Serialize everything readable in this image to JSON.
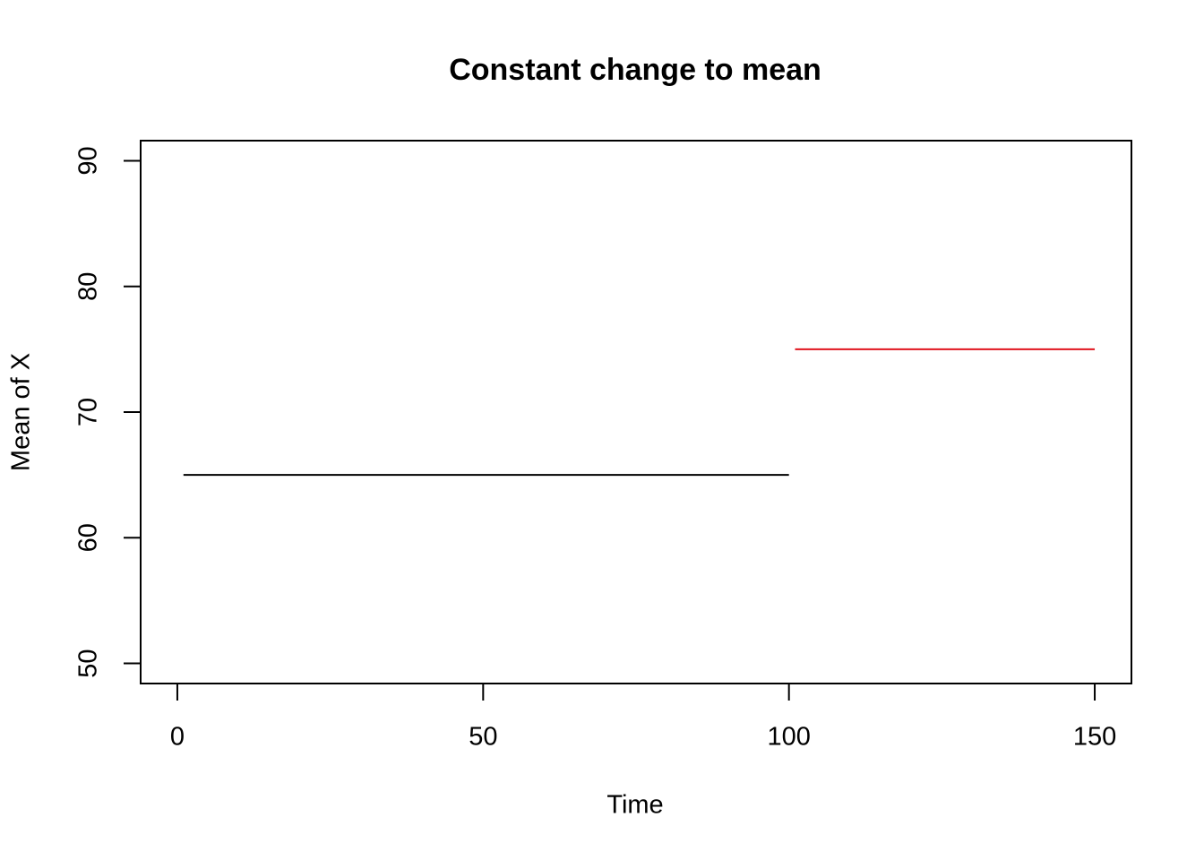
{
  "chart_data": {
    "type": "line",
    "title": "Constant change to mean",
    "x_label": "Time",
    "y_label": "Mean of X",
    "series": [
      {
        "color": "#000000",
        "x": [
          1,
          100
        ],
        "values": [
          65,
          65
        ]
      },
      {
        "color": "#e0141e",
        "x": [
          101,
          150
        ],
        "values": [
          75,
          75
        ]
      }
    ],
    "xlim": [
      -6,
      156
    ],
    "ylim": [
      48.4,
      91.6
    ],
    "xticks": [
      0,
      50,
      100,
      150
    ],
    "yticks": [
      50,
      60,
      70,
      80,
      90
    ]
  }
}
